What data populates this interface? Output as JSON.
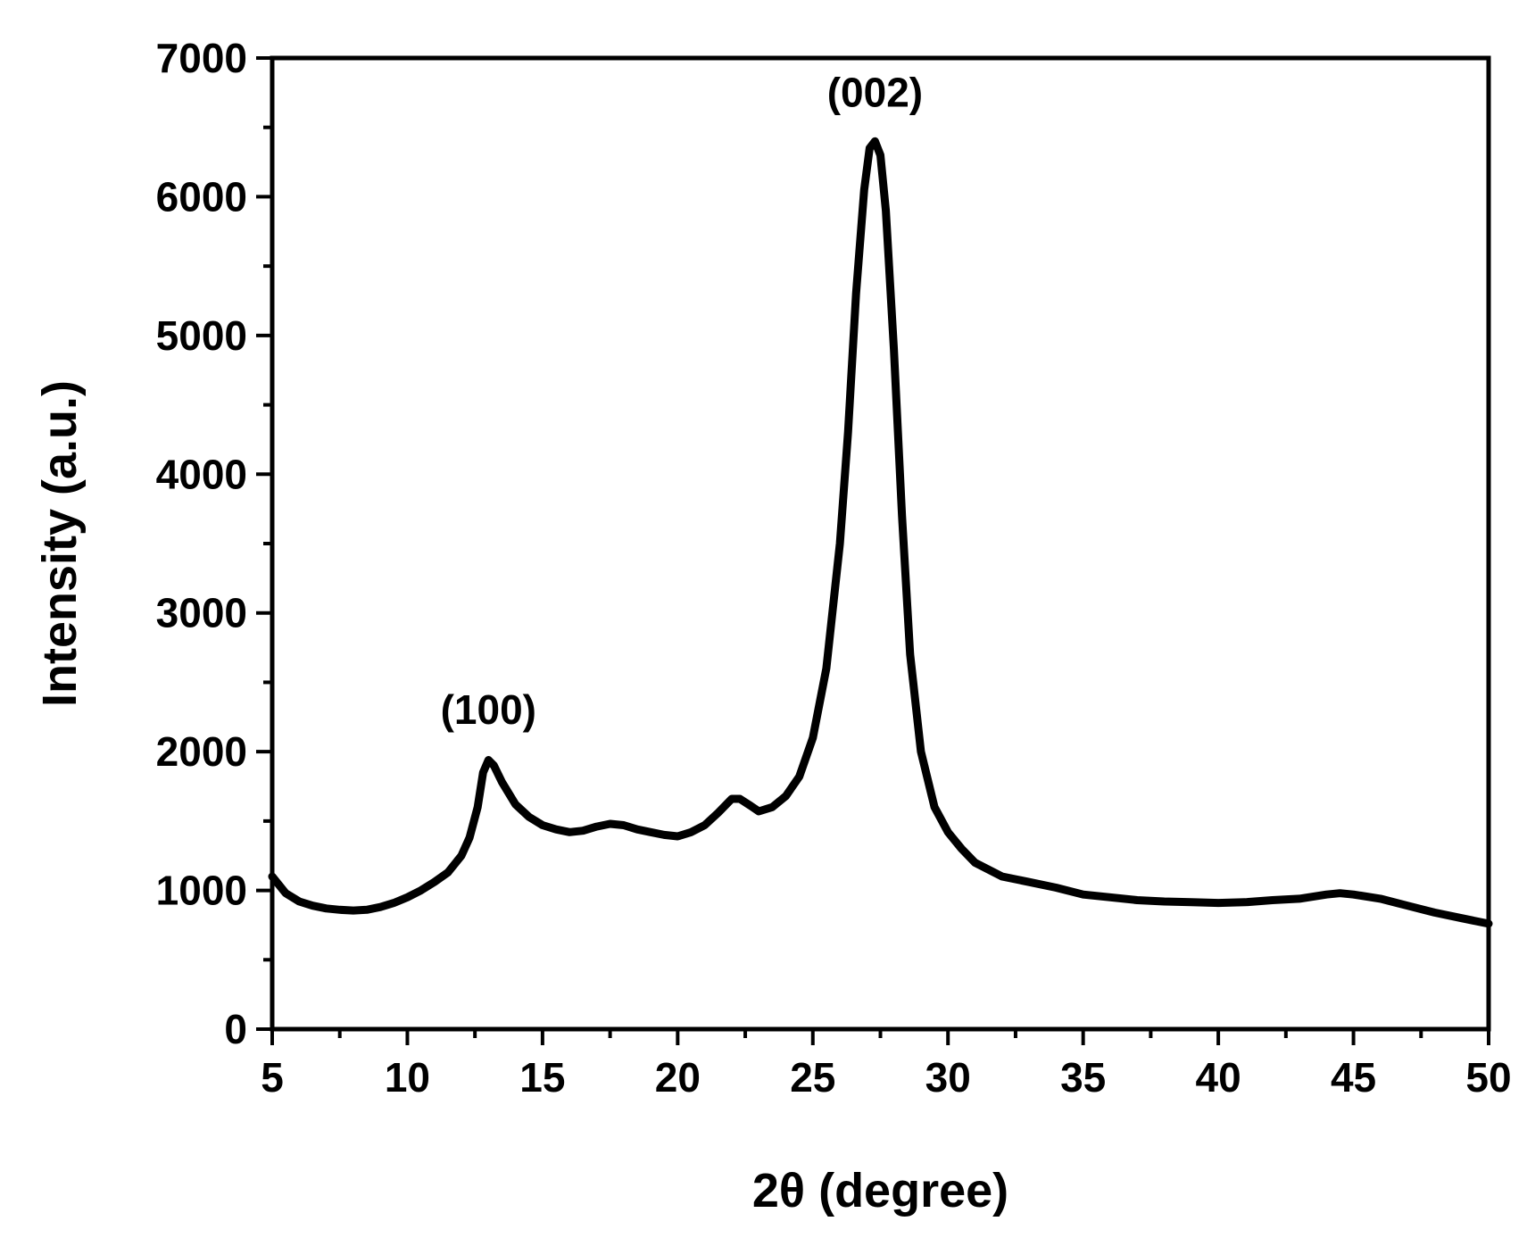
{
  "chart_data": {
    "type": "line",
    "title": "",
    "xlabel": "2θ (degree)",
    "ylabel": "Intensity (a.u.)",
    "xlim": [
      5,
      50
    ],
    "ylim": [
      0,
      7000
    ],
    "grid": false,
    "legend": "none",
    "x_ticks": [
      5,
      10,
      15,
      20,
      25,
      30,
      35,
      40,
      45,
      50
    ],
    "y_ticks": [
      0,
      1000,
      2000,
      3000,
      4000,
      5000,
      6000,
      7000
    ],
    "x_tick_labels": [
      "5",
      "10",
      "15",
      "20",
      "25",
      "30",
      "35",
      "40",
      "45",
      "50"
    ],
    "y_tick_labels": [
      "0",
      "1000",
      "2000",
      "3000",
      "4000",
      "5000",
      "6000",
      "7000"
    ],
    "annotations": [
      {
        "text": "(100)",
        "x": 13.0,
        "y": 2200
      },
      {
        "text": "(002)",
        "x": 27.3,
        "y": 6650
      }
    ],
    "series": [
      {
        "color": "#000000",
        "x": [
          5,
          5.5,
          6,
          6.5,
          7,
          7.5,
          8,
          8.5,
          9,
          9.5,
          10,
          10.5,
          11,
          11.5,
          12,
          12.3,
          12.6,
          12.8,
          13,
          13.2,
          13.5,
          14,
          14.5,
          15,
          15.5,
          16,
          16.5,
          17,
          17.5,
          18,
          18.5,
          19,
          19.5,
          20,
          20.5,
          21,
          21.5,
          22,
          22.3,
          22.7,
          23,
          23.5,
          24,
          24.5,
          25,
          25.5,
          26,
          26.3,
          26.6,
          26.9,
          27.1,
          27.3,
          27.5,
          27.7,
          28,
          28.3,
          28.6,
          29,
          29.5,
          30,
          30.5,
          31,
          32,
          33,
          34,
          35,
          36,
          37,
          38,
          39,
          40,
          41,
          42,
          43,
          44,
          44.5,
          45,
          46,
          47,
          48,
          49,
          50
        ],
        "y": [
          1100,
          980,
          920,
          890,
          870,
          860,
          855,
          860,
          880,
          910,
          950,
          1000,
          1060,
          1130,
          1250,
          1380,
          1600,
          1850,
          1940,
          1900,
          1780,
          1620,
          1530,
          1470,
          1440,
          1420,
          1430,
          1460,
          1480,
          1470,
          1440,
          1420,
          1400,
          1390,
          1420,
          1470,
          1560,
          1660,
          1660,
          1610,
          1570,
          1600,
          1680,
          1820,
          2100,
          2600,
          3500,
          4300,
          5300,
          6050,
          6350,
          6400,
          6300,
          5900,
          4900,
          3700,
          2700,
          2000,
          1600,
          1420,
          1300,
          1200,
          1100,
          1060,
          1020,
          970,
          950,
          930,
          920,
          915,
          910,
          915,
          930,
          940,
          970,
          980,
          970,
          940,
          890,
          840,
          800,
          760
        ]
      }
    ]
  }
}
